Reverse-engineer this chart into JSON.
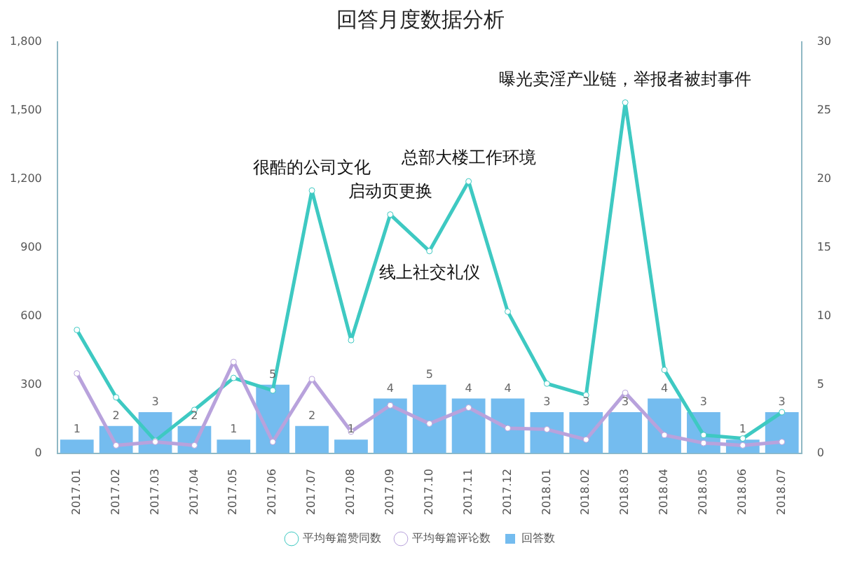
{
  "chart_data": {
    "type": "bar",
    "title": "回答月度数据分析",
    "categories": [
      "2017.01",
      "2017.02",
      "2017.03",
      "2017.04",
      "2017.05",
      "2017.06",
      "2017.07",
      "2017.08",
      "2017.09",
      "2017.10",
      "2017.11",
      "2017.12",
      "2018.01",
      "2018.02",
      "2018.03",
      "2018.04",
      "2018.05",
      "2018.06",
      "2018.07"
    ],
    "series": [
      {
        "name": "平均每篇赞同数",
        "type": "line",
        "color": "#3ec9c2",
        "values": [
          540,
          245,
          55,
          190,
          330,
          275,
          1150,
          495,
          1045,
          885,
          1190,
          620,
          305,
          255,
          1535,
          365,
          80,
          65,
          180
        ]
      },
      {
        "name": "平均每篇评论数",
        "type": "line",
        "color": "#b8a2dc",
        "values": [
          350,
          35,
          50,
          35,
          400,
          50,
          325,
          95,
          210,
          130,
          200,
          110,
          105,
          60,
          265,
          80,
          45,
          35,
          50
        ]
      },
      {
        "name": "回答数",
        "axis": "y2",
        "color": "#74bcef",
        "data_labels": true,
        "values": [
          1,
          2,
          3,
          2,
          1,
          5,
          2,
          1,
          4,
          5,
          4,
          4,
          3,
          3,
          3,
          4,
          3,
          1,
          3
        ]
      }
    ],
    "ylim": [
      0,
      1800
    ],
    "yticks": [
      0,
      {
        "value": 300,
        "label": "300"
      },
      {
        "value": 600,
        "label": "600"
      },
      {
        "value": 900,
        "label": "900"
      },
      {
        "value": 1200,
        "label": "1,200"
      },
      {
        "value": 1500,
        "label": "1,500"
      },
      {
        "value": 1800,
        "label": "1,800"
      }
    ],
    "y2lim": [
      0,
      30
    ],
    "y2ticks": [
      0,
      5,
      10,
      15,
      20,
      25,
      30
    ],
    "grid": false,
    "legend": "bottom",
    "marker": "circle",
    "annotations": [
      {
        "text": "很酷的公司文化",
        "x": "2017.07",
        "y": 1150
      },
      {
        "text": "启动页更换",
        "x": "2017.09",
        "y": 1045
      },
      {
        "text": "总部大楼工作环境",
        "x": "2017.11",
        "y": 1190
      },
      {
        "text": "线上社交礼仪",
        "x": "2017.10",
        "y": 885
      },
      {
        "text": "曝光卖淫产业链，举报者被封事件",
        "x": "2018.03",
        "y": 1535
      }
    ]
  }
}
